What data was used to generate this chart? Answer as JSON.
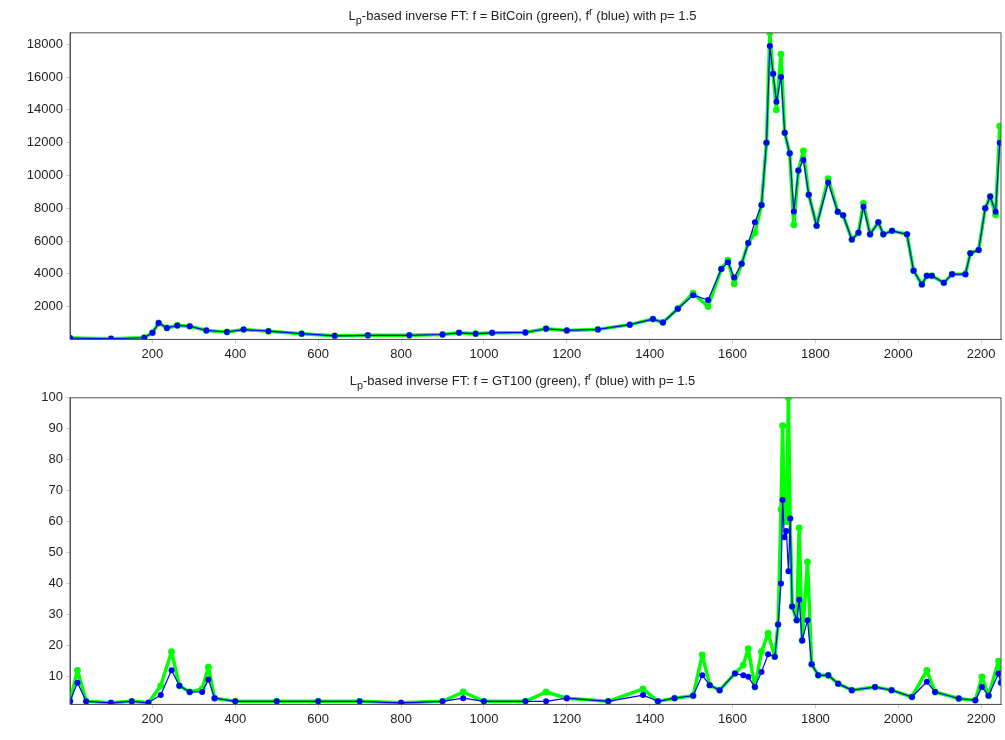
{
  "chart_data": [
    {
      "type": "line",
      "title": "L$_{p}$-based inverse FT: f = BitCoin (green), f$^{r}$ (blue) with p= 1.5",
      "marker": "circle",
      "line_style": "solid",
      "xlim": [
        1,
        2248
      ],
      "xticks": [
        200,
        400,
        600,
        800,
        1000,
        1200,
        1400,
        1600,
        1800,
        2000,
        2200
      ],
      "ylim": [
        0,
        18700
      ],
      "yticks": [
        2000,
        4000,
        6000,
        8000,
        10000,
        12000,
        14000,
        16000,
        18000
      ],
      "series": [
        {
          "color": "#00ff00",
          "x": [
            1,
            100,
            180,
            200,
            215,
            235,
            260,
            290,
            330,
            380,
            420,
            480,
            560,
            640,
            720,
            820,
            900,
            940,
            980,
            1020,
            1100,
            1150,
            1200,
            1275,
            1352,
            1408,
            1432,
            1468,
            1505,
            1541,
            1573,
            1589,
            1604,
            1622,
            1638,
            1654,
            1670,
            1682,
            1690,
            1698,
            1706,
            1717,
            1726,
            1738,
            1748,
            1759,
            1771,
            1784,
            1803,
            1831,
            1854,
            1867,
            1888,
            1904,
            1916,
            1932,
            1952,
            1964,
            1985,
            2021,
            2037,
            2057,
            2069,
            2081,
            2110,
            2130,
            2162,
            2174,
            2194,
            2210,
            2222,
            2235,
            2245
          ],
          "values": [
            80,
            40,
            100,
            400,
            1000,
            700,
            850,
            800,
            550,
            450,
            600,
            500,
            350,
            220,
            250,
            250,
            300,
            400,
            350,
            400,
            420,
            650,
            550,
            610,
            900,
            1240,
            1030,
            1870,
            2820,
            2000,
            4300,
            4830,
            3400,
            4610,
            5880,
            6500,
            8200,
            12000,
            18700,
            16200,
            14000,
            17400,
            12600,
            11350,
            7000,
            10300,
            11500,
            8830,
            6930,
            9800,
            7780,
            7570,
            6090,
            6510,
            8300,
            6410,
            7140,
            6410,
            6620,
            6410,
            4190,
            3350,
            3880,
            3880,
            3450,
            3980,
            3980,
            5250,
            5460,
            8000,
            8720,
            7600,
            13000
          ]
        },
        {
          "color": "#0000ff",
          "x": [
            1,
            100,
            180,
            200,
            215,
            235,
            260,
            290,
            330,
            380,
            420,
            480,
            560,
            640,
            720,
            820,
            900,
            940,
            980,
            1020,
            1100,
            1150,
            1200,
            1275,
            1352,
            1408,
            1432,
            1468,
            1505,
            1541,
            1573,
            1589,
            1604,
            1622,
            1638,
            1654,
            1670,
            1682,
            1690,
            1698,
            1706,
            1717,
            1726,
            1738,
            1748,
            1759,
            1771,
            1784,
            1803,
            1831,
            1854,
            1867,
            1888,
            1904,
            1916,
            1932,
            1952,
            1964,
            1985,
            2021,
            2037,
            2057,
            2069,
            2081,
            2110,
            2130,
            2162,
            2174,
            2194,
            2210,
            2222,
            2235,
            2245
          ],
          "values": [
            80,
            40,
            100,
            400,
            1000,
            700,
            850,
            800,
            550,
            450,
            600,
            500,
            350,
            220,
            250,
            250,
            300,
            400,
            350,
            400,
            420,
            650,
            550,
            610,
            900,
            1240,
            1030,
            1870,
            2700,
            2400,
            4300,
            4700,
            3770,
            4610,
            5880,
            7140,
            8200,
            12000,
            17900,
            16200,
            14500,
            16000,
            12600,
            11350,
            7800,
            10300,
            10940,
            8830,
            6930,
            9570,
            7780,
            7570,
            6090,
            6510,
            8090,
            6410,
            7140,
            6410,
            6620,
            6410,
            4190,
            3350,
            3880,
            3880,
            3450,
            3980,
            3980,
            5250,
            5460,
            8000,
            8720,
            7780,
            12000
          ]
        }
      ]
    },
    {
      "type": "line",
      "title": "L$_{p}$-based inverse FT: f = GT100 (green), f$^{r}$ (blue) with p= 1.5",
      "marker": "circle",
      "line_style": "solid",
      "xlim": [
        1,
        2248
      ],
      "xticks": [
        200,
        400,
        600,
        800,
        1000,
        1200,
        1400,
        1600,
        1800,
        2000,
        2200
      ],
      "ylim": [
        1,
        100
      ],
      "yticks": [
        10,
        20,
        30,
        40,
        50,
        60,
        70,
        80,
        90,
        100
      ],
      "series": [
        {
          "color": "#00ff00",
          "x": [
            1,
            19,
            40,
            100,
            150,
            190,
            220,
            246,
            265,
            290,
            320,
            335,
            350,
            400,
            500,
            600,
            700,
            800,
            900,
            950,
            1000,
            1100,
            1150,
            1200,
            1300,
            1384,
            1420,
            1460,
            1505,
            1527,
            1545,
            1569,
            1606,
            1626,
            1638,
            1654,
            1670,
            1686,
            1702,
            1710,
            1717,
            1721,
            1725,
            1730,
            1735,
            1739,
            1744,
            1755,
            1761,
            1768,
            1781,
            1791,
            1807,
            1831,
            1855,
            1888,
            1944,
            1984,
            2033,
            2069,
            2089,
            2146,
            2186,
            2202,
            2218,
            2242,
            2248
          ],
          "values": [
            2,
            12,
            2,
            1.5,
            2,
            1.5,
            7,
            18,
            7,
            5,
            6,
            13,
            3,
            2,
            2,
            2,
            2,
            1.5,
            2,
            5,
            2,
            2,
            5,
            3,
            2,
            6,
            2,
            3,
            3.8,
            17,
            7.2,
            5.6,
            11,
            13.7,
            19,
            6.6,
            18,
            24,
            16.4,
            26.8,
            64,
            91,
            62,
            60,
            100,
            61,
            32.6,
            28.2,
            58,
            21.6,
            47,
            14,
            10.4,
            10.4,
            7.7,
            5.6,
            6.6,
            5.6,
            3.4,
            12,
            5,
            2.9,
            2.3,
            9.9,
            3.8,
            15,
            8
          ]
        },
        {
          "color": "#0000ff",
          "x": [
            1,
            19,
            40,
            100,
            150,
            190,
            220,
            246,
            265,
            290,
            320,
            335,
            350,
            400,
            500,
            600,
            700,
            800,
            900,
            950,
            1000,
            1100,
            1150,
            1200,
            1300,
            1384,
            1420,
            1460,
            1505,
            1527,
            1545,
            1569,
            1606,
            1626,
            1638,
            1654,
            1670,
            1686,
            1702,
            1710,
            1717,
            1721,
            1725,
            1730,
            1735,
            1739,
            1744,
            1755,
            1761,
            1768,
            1781,
            1791,
            1807,
            1831,
            1855,
            1888,
            1944,
            1984,
            2033,
            2069,
            2089,
            2146,
            2186,
            2202,
            2218,
            2242,
            2248
          ],
          "values": [
            2,
            8,
            2,
            1.5,
            2,
            1.5,
            4,
            12,
            7,
            5,
            5,
            9,
            3,
            2,
            2,
            2,
            2,
            1.5,
            2,
            3,
            2,
            2,
            2,
            3,
            2,
            4,
            2,
            3,
            3.8,
            10.4,
            7.2,
            5.6,
            11,
            10.4,
            9.9,
            6.6,
            11.5,
            17.2,
            16.4,
            26.8,
            40,
            67,
            55,
            57,
            44,
            61,
            32.6,
            28.2,
            34.8,
            21.6,
            28.2,
            14,
            10.4,
            10.4,
            7.7,
            5.6,
            6.6,
            5.6,
            3.4,
            8.3,
            5,
            2.9,
            2.3,
            6.6,
            3.8,
            11,
            8
          ]
        }
      ]
    }
  ]
}
